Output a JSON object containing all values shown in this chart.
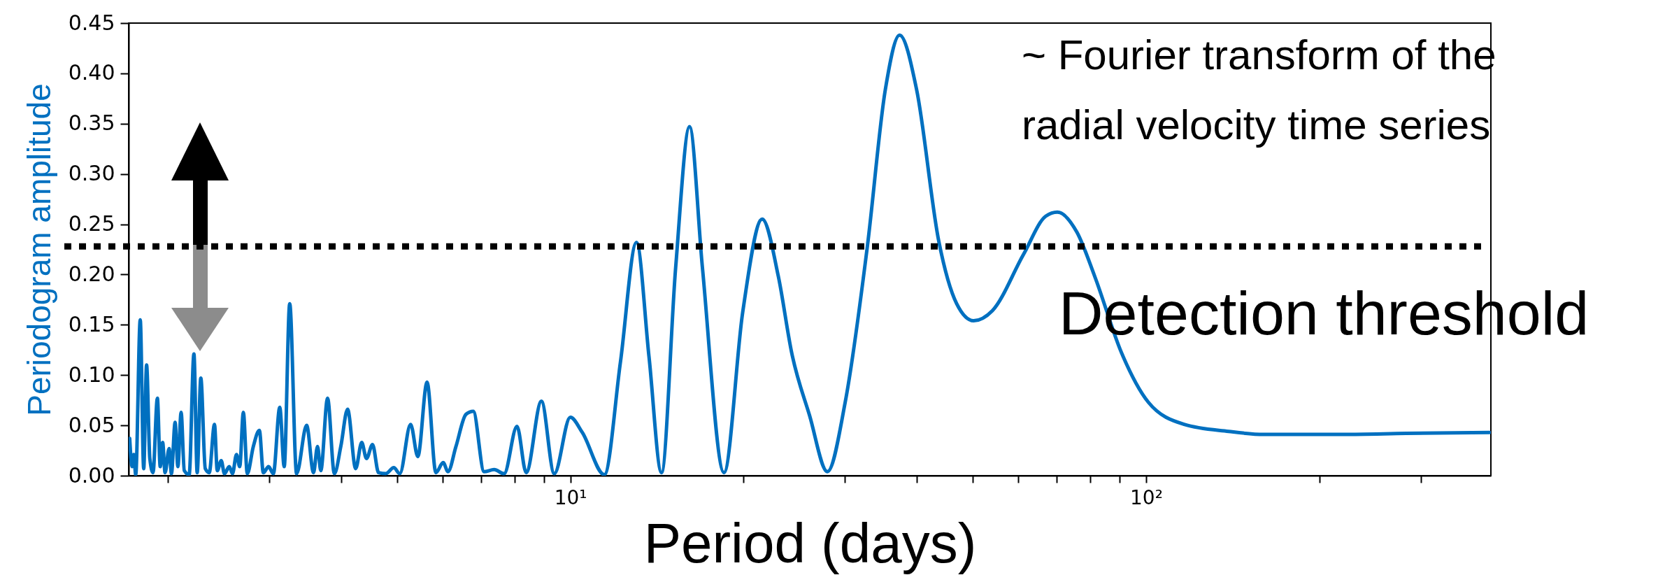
{
  "chart_data": {
    "type": "line",
    "xlabel": "Period (days)",
    "ylabel": "Periodogram amplitude",
    "log": "x",
    "grid": false,
    "xlim": [
      1.71,
      397
    ],
    "ylim": [
      0,
      0.45
    ],
    "xticks": [
      {
        "value": 2,
        "label": null
      },
      {
        "value": 3,
        "label": null
      },
      {
        "value": 4,
        "label": null
      },
      {
        "value": 5,
        "label": null
      },
      {
        "value": 6,
        "label": null
      },
      {
        "value": 7,
        "label": null
      },
      {
        "value": 8,
        "label": null
      },
      {
        "value": 9,
        "label": null
      },
      {
        "value": 10,
        "label": "10¹"
      },
      {
        "value": 20,
        "label": null
      },
      {
        "value": 30,
        "label": null
      },
      {
        "value": 40,
        "label": null
      },
      {
        "value": 50,
        "label": null
      },
      {
        "value": 60,
        "label": null
      },
      {
        "value": 70,
        "label": null
      },
      {
        "value": 80,
        "label": null
      },
      {
        "value": 90,
        "label": null
      },
      {
        "value": 100,
        "label": "10²"
      },
      {
        "value": 200,
        "label": null
      },
      {
        "value": 300,
        "label": null
      }
    ],
    "yticks": [
      {
        "value": 0,
        "label": "0.00"
      },
      {
        "value": 0.05,
        "label": "0.05"
      },
      {
        "value": 0.1,
        "label": "0.10"
      },
      {
        "value": 0.15,
        "label": "0.15"
      },
      {
        "value": 0.2,
        "label": "0.20"
      },
      {
        "value": 0.25,
        "label": "0.25"
      },
      {
        "value": 0.3,
        "label": "0.30"
      },
      {
        "value": 0.35,
        "label": "0.35"
      },
      {
        "value": 0.4,
        "label": "0.40"
      },
      {
        "value": 0.45,
        "label": "0.45"
      }
    ],
    "x": [
      1.717,
      1.734,
      1.745,
      1.759,
      1.791,
      1.816,
      1.837,
      1.861,
      1.885,
      1.918,
      1.94,
      1.959,
      1.978,
      2.01,
      2.029,
      2.059,
      2.082,
      2.109,
      2.136,
      2.178,
      2.22,
      2.249,
      2.282,
      2.323,
      2.36,
      2.41,
      2.437,
      2.476,
      2.508,
      2.557,
      2.59,
      2.632,
      2.666,
      2.705,
      2.748,
      2.815,
      2.884,
      2.93,
      2.992,
      3.05,
      3.129,
      3.185,
      3.256,
      3.347,
      3.484,
      3.581,
      3.639,
      3.687,
      3.788,
      3.893,
      3.994,
      4.104,
      4.239,
      4.342,
      4.426,
      4.534,
      4.645,
      4.78,
      4.936,
      5.057,
      5.28,
      5.435,
      5.639,
      5.843,
      6.014,
      6.131,
      6.33,
      6.589,
      6.783,
      7.085,
      7.374,
      7.674,
      8.08,
      8.383,
      8.909,
      9.378,
      10.0,
      10.49,
      11.46,
      12.22,
      13.03,
      13.7,
      14.4,
      15.24,
      16.11,
      16.96,
      18.49,
      19.92,
      21.54,
      22.98,
      24.24,
      26.03,
      27.96,
      30.02,
      32.82,
      35.25,
      37.32,
      39.94,
      43.65,
      46.88,
      50.17,
      54.07,
      61.24,
      66.96,
      70.13,
      75.84,
      81.45,
      90.66,
      100.9,
      116.4,
      139.1,
      160,
      220,
      283,
      395
    ],
    "series": [
      {
        "color": "#0070c0",
        "values": [
          0.037,
          0.009,
          0.021,
          0.001,
          0.155,
          0.007,
          0.11,
          0.017,
          0.003,
          0.077,
          0.009,
          0.033,
          0.003,
          0.027,
          0.002,
          0.053,
          0.009,
          0.063,
          0.005,
          0.001,
          0.121,
          0.003,
          0.097,
          0.007,
          0.003,
          0.051,
          0.005,
          0.015,
          0.002,
          0.009,
          0.002,
          0.021,
          0.009,
          0.063,
          0.002,
          0.029,
          0.045,
          0.003,
          0.009,
          0.002,
          0.068,
          0.009,
          0.171,
          0.002,
          0.05,
          0.003,
          0.029,
          0.005,
          0.077,
          0.002,
          0.029,
          0.066,
          0.007,
          0.033,
          0.017,
          0.031,
          0.003,
          0.002,
          0.008,
          0.002,
          0.051,
          0.019,
          0.093,
          0.003,
          0.013,
          0.004,
          0.029,
          0.061,
          0.064,
          0.004,
          0.006,
          0.002,
          0.049,
          0.003,
          0.074,
          0.002,
          0.058,
          0.043,
          0.001,
          0.113,
          0.232,
          0.118,
          0.003,
          0.207,
          0.347,
          0.207,
          0.003,
          0.162,
          0.255,
          0.198,
          0.122,
          0.06,
          0.004,
          0.073,
          0.229,
          0.384,
          0.438,
          0.384,
          0.233,
          0.171,
          0.154,
          0.164,
          0.22,
          0.258,
          0.262,
          0.242,
          0.198,
          0.122,
          0.073,
          0.051,
          0.044,
          0.041,
          0.041,
          0.042,
          0.043
        ]
      }
    ],
    "ref_lines": [
      {
        "axis": "y",
        "value": 0.228,
        "label": "Detection threshold",
        "color": "#000000",
        "line_style": "dotted"
      }
    ],
    "annotations": [
      "~ Fourier transform of the\nradial velocity  time series"
    ]
  }
}
